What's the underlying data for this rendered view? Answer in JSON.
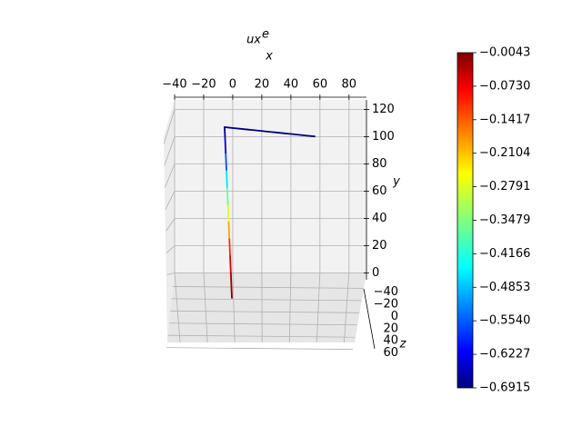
{
  "chart_data": {
    "type": "line3d",
    "title": "ux",
    "title_superscript": "e",
    "x_label": "x",
    "y_label": "y",
    "z_label": "z",
    "xlim": [
      -45,
      92
    ],
    "ylim": [
      -5,
      127
    ],
    "zlim": [
      -60,
      65
    ],
    "xticks": [
      {
        "value": -40,
        "label": "−40"
      },
      {
        "value": -20,
        "label": "−20"
      },
      0,
      20,
      40,
      60,
      80
    ],
    "yticks": [
      0,
      20,
      40,
      60,
      80,
      100,
      120
    ],
    "zticks": [
      {
        "value": -40,
        "label": "−40"
      },
      {
        "value": -20,
        "label": "−20"
      },
      0,
      20,
      40,
      60
    ],
    "grid": true,
    "series": [
      {
        "x": [
          0,
          0,
          0,
          0,
          0,
          0,
          0,
          0,
          0,
          0,
          0,
          10,
          20,
          30,
          40,
          50,
          60
        ],
        "y": [
          0,
          10,
          20,
          30,
          40,
          50,
          60,
          70,
          80,
          90,
          100,
          100,
          100,
          100,
          100,
          100,
          100
        ],
        "z": [
          0,
          0,
          0,
          0,
          0,
          0,
          0,
          0,
          0,
          0,
          0,
          0,
          0,
          0,
          0,
          0,
          0
        ],
        "c": [
          -0.0043,
          -0.02,
          -0.06,
          -0.12,
          -0.2,
          -0.28,
          -0.37,
          -0.45,
          -0.55,
          -0.63,
          -0.68,
          -0.685,
          -0.687,
          -0.689,
          -0.69,
          -0.691,
          -0.6915
        ]
      }
    ],
    "colorbar": {
      "clim": [
        -0.6915,
        -0.0043
      ],
      "colormap": "jet",
      "ticks": [
        {
          "value": -0.0043,
          "label": "−0.0043"
        },
        {
          "value": -0.073,
          "label": "−0.0730"
        },
        {
          "value": -0.1417,
          "label": "−0.1417"
        },
        {
          "value": -0.2104,
          "label": "−0.2104"
        },
        {
          "value": -0.2791,
          "label": "−0.2791"
        },
        {
          "value": -0.3479,
          "label": "−0.3479"
        },
        {
          "value": -0.4166,
          "label": "−0.4166"
        },
        {
          "value": -0.4853,
          "label": "−0.4853"
        },
        {
          "value": -0.554,
          "label": "−0.5540"
        },
        {
          "value": -0.6227,
          "label": "−0.6227"
        },
        {
          "value": -0.6915,
          "label": "−0.6915"
        }
      ]
    }
  }
}
